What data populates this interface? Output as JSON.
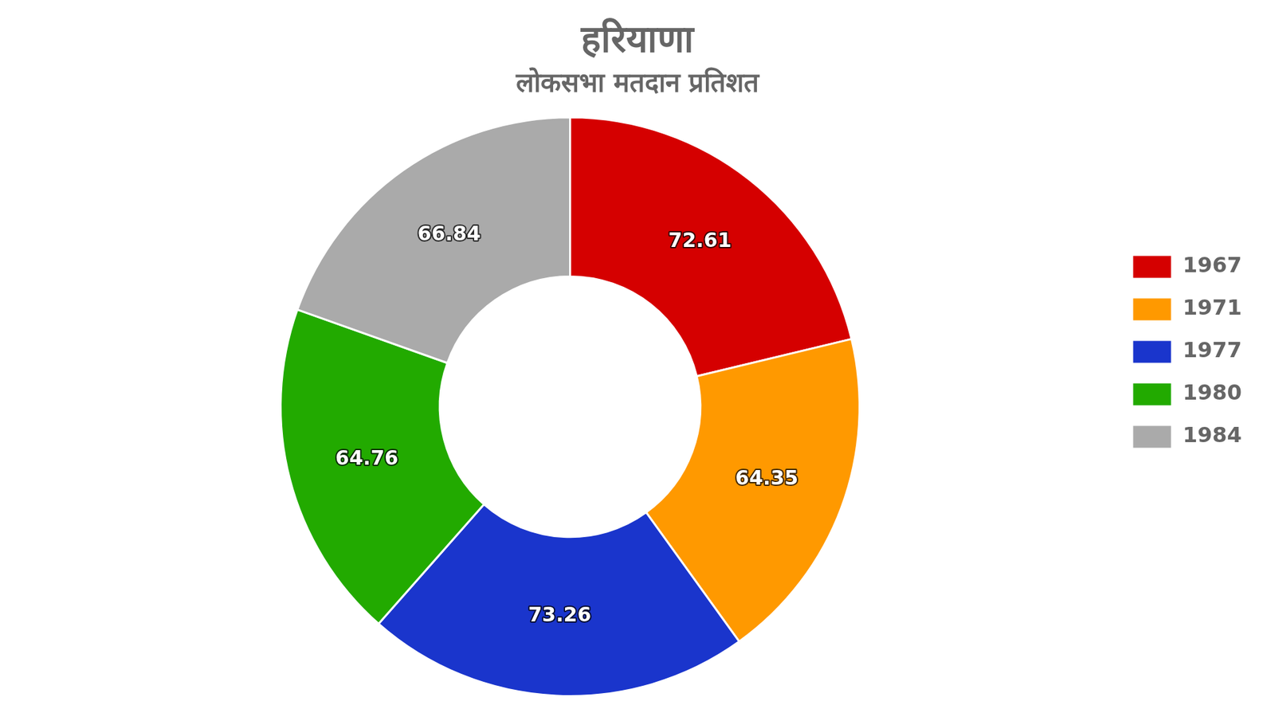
{
  "chart_data": {
    "type": "doughnut",
    "title": "हरियाणा",
    "subtitle": "लोकसभा मतदान प्रतिशत",
    "categories": [
      "1967",
      "1971",
      "1977",
      "1980",
      "1984"
    ],
    "values": [
      72.61,
      64.35,
      73.26,
      64.76,
      66.84
    ],
    "colors": [
      "#d50000",
      "#ff9900",
      "#1a35cc",
      "#22aa00",
      "#aaaaaa"
    ],
    "legend": "right",
    "data_labels": true
  }
}
